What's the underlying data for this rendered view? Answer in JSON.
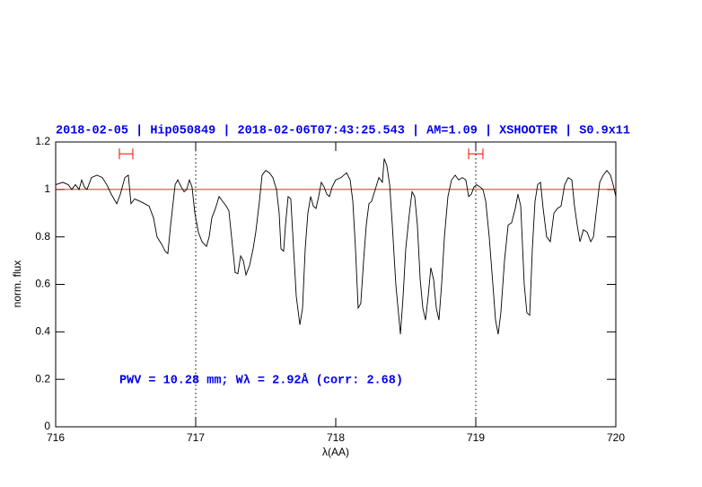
{
  "chart_data": {
    "type": "line",
    "title": "2018-02-05 | Hip050849 | 2018-02-06T07:43:25.543 | AM=1.09 | XSHOOTER | S0.9x11",
    "title_color": "#0000ee",
    "annotation": "PWV = 10.28 mm; Wλ = 2.92Å (corr: 2.68)",
    "annotation_color": "#0000ee",
    "xlabel": "λ(AA)",
    "ylabel": "norm. flux",
    "xlim": [
      716,
      720
    ],
    "ylim": [
      0,
      1.2
    ],
    "xticks": [
      716,
      717,
      718,
      719,
      720
    ],
    "yticks": [
      0,
      0.2,
      0.4,
      0.6,
      0.8,
      1,
      1.2
    ],
    "color": "#000000",
    "x": [
      716.0,
      716.051,
      716.09,
      716.115,
      716.141,
      716.167,
      716.186,
      716.205,
      716.224,
      716.256,
      716.295,
      716.333,
      716.365,
      716.397,
      716.436,
      716.462,
      716.494,
      716.519,
      716.538,
      716.564,
      716.603,
      716.635,
      716.667,
      716.699,
      716.724,
      716.756,
      716.782,
      716.801,
      716.821,
      716.853,
      716.872,
      716.897,
      716.917,
      716.936,
      716.955,
      716.974,
      716.994,
      717.019,
      717.045,
      717.077,
      717.096,
      717.115,
      717.141,
      717.167,
      717.192,
      717.218,
      717.237,
      717.256,
      717.282,
      717.301,
      717.321,
      717.34,
      717.359,
      717.385,
      717.41,
      717.429,
      717.455,
      717.474,
      717.5,
      717.526,
      717.551,
      717.577,
      717.596,
      717.609,
      717.628,
      717.641,
      717.66,
      717.679,
      717.699,
      717.718,
      717.744,
      717.763,
      717.782,
      717.801,
      717.821,
      717.84,
      717.859,
      717.878,
      717.897,
      717.917,
      717.936,
      717.955,
      717.974,
      718.0,
      718.038,
      718.077,
      718.103,
      718.122,
      718.141,
      718.16,
      718.179,
      718.199,
      718.218,
      718.237,
      718.256,
      718.282,
      718.308,
      718.333,
      718.346,
      718.365,
      718.385,
      718.404,
      718.429,
      718.462,
      718.481,
      718.5,
      718.526,
      718.545,
      718.564,
      718.583,
      718.603,
      718.622,
      718.641,
      718.66,
      718.679,
      718.699,
      718.718,
      718.737,
      718.756,
      718.776,
      718.801,
      718.827,
      718.853,
      718.878,
      718.904,
      718.929,
      718.949,
      718.968,
      718.987,
      719.006,
      719.032,
      719.051,
      719.071,
      719.096,
      719.122,
      719.141,
      719.16,
      719.179,
      719.205,
      719.231,
      719.256,
      719.282,
      719.301,
      719.321,
      719.346,
      719.365,
      719.385,
      719.404,
      719.423,
      719.442,
      719.462,
      719.481,
      719.506,
      719.532,
      719.558,
      719.583,
      719.609,
      719.635,
      719.66,
      719.686,
      719.705,
      719.724,
      719.744,
      719.769,
      719.795,
      719.821,
      719.84,
      719.859,
      719.885,
      719.91,
      719.936,
      719.962,
      719.981,
      720.0
    ],
    "values": [
      1.02,
      1.03,
      1.02,
      1.0,
      1.02,
      1.0,
      1.04,
      1.01,
      1.0,
      1.05,
      1.06,
      1.05,
      1.02,
      0.98,
      0.94,
      0.98,
      1.05,
      1.06,
      0.94,
      0.96,
      0.95,
      0.94,
      0.93,
      0.88,
      0.8,
      0.77,
      0.74,
      0.73,
      0.85,
      1.02,
      1.04,
      1.01,
      0.99,
      1.0,
      1.04,
      1.01,
      0.9,
      0.82,
      0.78,
      0.76,
      0.8,
      0.88,
      0.92,
      0.97,
      0.95,
      0.93,
      0.91,
      0.8,
      0.65,
      0.645,
      0.72,
      0.7,
      0.64,
      0.68,
      0.75,
      0.82,
      0.95,
      1.06,
      1.08,
      1.07,
      1.05,
      1.0,
      0.9,
      0.75,
      0.74,
      0.85,
      0.97,
      0.96,
      0.75,
      0.55,
      0.43,
      0.5,
      0.75,
      0.9,
      0.97,
      0.93,
      0.92,
      0.97,
      1.03,
      1.01,
      0.98,
      0.97,
      1.01,
      1.04,
      1.05,
      1.07,
      1.04,
      0.95,
      0.75,
      0.5,
      0.52,
      0.7,
      0.85,
      0.94,
      0.95,
      1.0,
      1.05,
      1.03,
      1.13,
      1.1,
      1.02,
      0.85,
      0.6,
      0.39,
      0.55,
      0.75,
      0.9,
      0.99,
      0.97,
      0.85,
      0.62,
      0.5,
      0.45,
      0.55,
      0.67,
      0.62,
      0.5,
      0.45,
      0.6,
      0.8,
      0.97,
      1.04,
      1.06,
      1.04,
      1.05,
      1.04,
      0.97,
      0.98,
      1.01,
      1.02,
      1.01,
      1.0,
      0.95,
      0.8,
      0.6,
      0.45,
      0.39,
      0.48,
      0.7,
      0.85,
      0.86,
      0.92,
      0.98,
      0.93,
      0.6,
      0.48,
      0.47,
      0.75,
      0.95,
      1.02,
      1.03,
      0.92,
      0.8,
      0.78,
      0.9,
      0.92,
      0.93,
      1.02,
      1.05,
      1.04,
      0.93,
      0.85,
      0.78,
      0.83,
      0.82,
      0.78,
      0.8,
      0.9,
      1.03,
      1.06,
      1.08,
      1.06,
      1.02,
      0.97
    ],
    "hlines": [
      {
        "value": 1,
        "color": "#ff0000"
      }
    ],
    "vlines": [
      {
        "value": 717,
        "color": "#000000"
      },
      {
        "value": 719,
        "color": "#000000"
      }
    ],
    "range_markers": [
      {
        "x": [
          716.455,
          716.551
        ],
        "y": 1.15,
        "color": "#ff0000"
      },
      {
        "x": [
          718.949,
          719.051
        ],
        "y": 1.15,
        "color": "#ff0000"
      }
    ]
  }
}
